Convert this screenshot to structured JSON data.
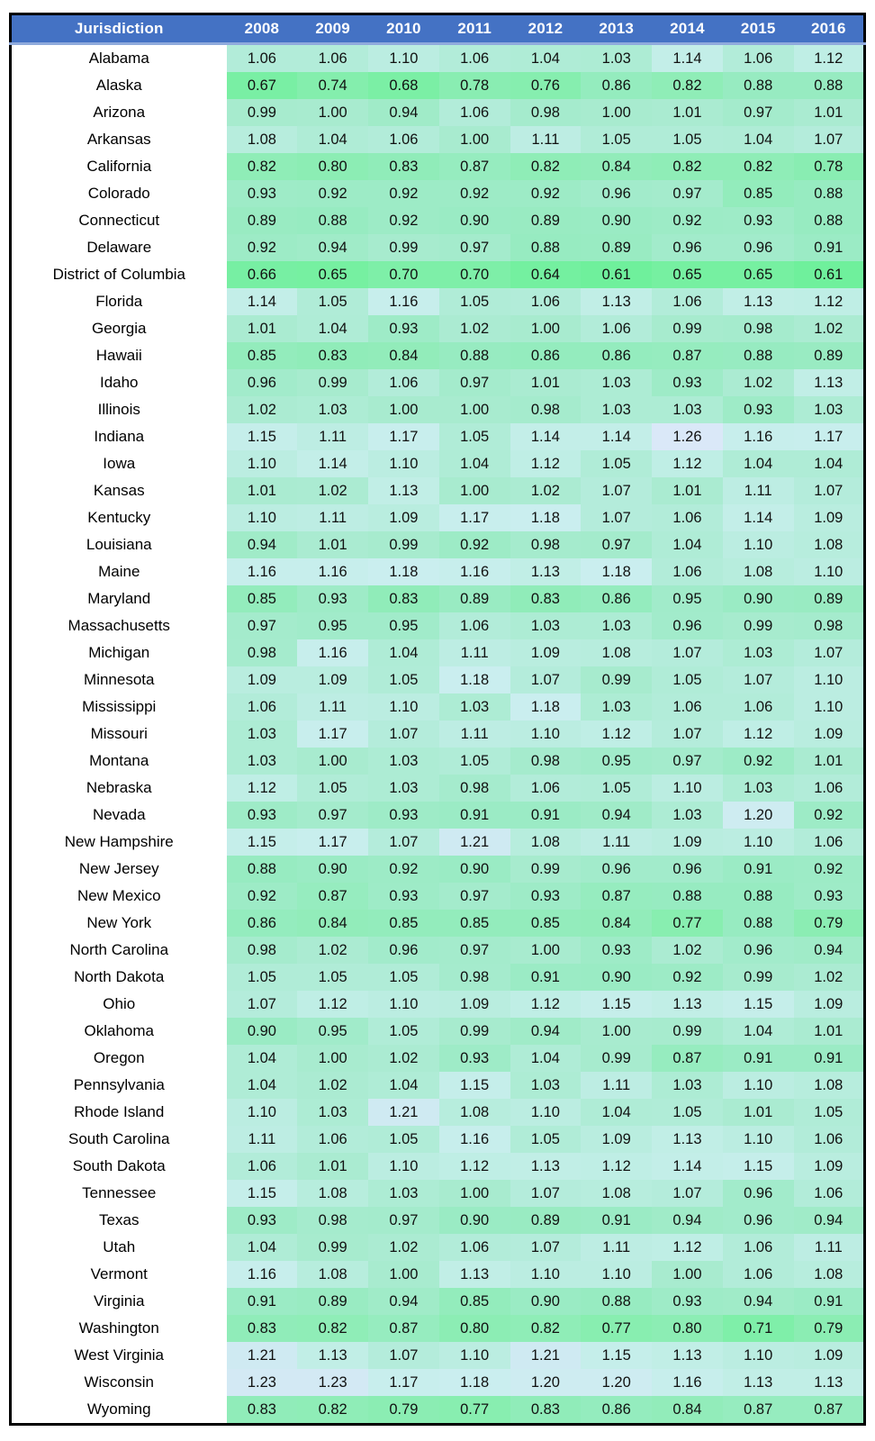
{
  "chart_data": {
    "type": "heatmap",
    "title": "",
    "corner_label": "Jurisdiction",
    "columns": [
      "2008",
      "2009",
      "2010",
      "2011",
      "2012",
      "2013",
      "2014",
      "2015",
      "2016"
    ],
    "rows": [
      {
        "name": "Alabama",
        "values": [
          1.06,
          1.06,
          1.1,
          1.06,
          1.04,
          1.03,
          1.14,
          1.06,
          1.12
        ]
      },
      {
        "name": "Alaska",
        "values": [
          0.67,
          0.74,
          0.68,
          0.78,
          0.76,
          0.86,
          0.82,
          0.88,
          0.88
        ]
      },
      {
        "name": "Arizona",
        "values": [
          0.99,
          1.0,
          0.94,
          1.06,
          0.98,
          1.0,
          1.01,
          0.97,
          1.01
        ]
      },
      {
        "name": "Arkansas",
        "values": [
          1.08,
          1.04,
          1.06,
          1.0,
          1.11,
          1.05,
          1.05,
          1.04,
          1.07
        ]
      },
      {
        "name": "California",
        "values": [
          0.82,
          0.8,
          0.83,
          0.87,
          0.82,
          0.84,
          0.82,
          0.82,
          0.78
        ]
      },
      {
        "name": "Colorado",
        "values": [
          0.93,
          0.92,
          0.92,
          0.92,
          0.92,
          0.96,
          0.97,
          0.85,
          0.88
        ]
      },
      {
        "name": "Connecticut",
        "values": [
          0.89,
          0.88,
          0.92,
          0.9,
          0.89,
          0.9,
          0.92,
          0.93,
          0.88
        ]
      },
      {
        "name": "Delaware",
        "values": [
          0.92,
          0.94,
          0.99,
          0.97,
          0.88,
          0.89,
          0.96,
          0.96,
          0.91
        ]
      },
      {
        "name": "District of Columbia",
        "values": [
          0.66,
          0.65,
          0.7,
          0.7,
          0.64,
          0.61,
          0.65,
          0.65,
          0.61
        ]
      },
      {
        "name": "Florida",
        "values": [
          1.14,
          1.05,
          1.16,
          1.05,
          1.06,
          1.13,
          1.06,
          1.13,
          1.12
        ]
      },
      {
        "name": "Georgia",
        "values": [
          1.01,
          1.04,
          0.93,
          1.02,
          1.0,
          1.06,
          0.99,
          0.98,
          1.02
        ]
      },
      {
        "name": "Hawaii",
        "values": [
          0.85,
          0.83,
          0.84,
          0.88,
          0.86,
          0.86,
          0.87,
          0.88,
          0.89
        ]
      },
      {
        "name": "Idaho",
        "values": [
          0.96,
          0.99,
          1.06,
          0.97,
          1.01,
          1.03,
          0.93,
          1.02,
          1.13
        ]
      },
      {
        "name": "Illinois",
        "values": [
          1.02,
          1.03,
          1.0,
          1.0,
          0.98,
          1.03,
          1.03,
          0.93,
          1.03
        ]
      },
      {
        "name": "Indiana",
        "values": [
          1.15,
          1.11,
          1.17,
          1.05,
          1.14,
          1.14,
          1.26,
          1.16,
          1.17
        ]
      },
      {
        "name": "Iowa",
        "values": [
          1.1,
          1.14,
          1.1,
          1.04,
          1.12,
          1.05,
          1.12,
          1.04,
          1.04
        ]
      },
      {
        "name": "Kansas",
        "values": [
          1.01,
          1.02,
          1.13,
          1.0,
          1.02,
          1.07,
          1.01,
          1.11,
          1.07
        ]
      },
      {
        "name": "Kentucky",
        "values": [
          1.1,
          1.11,
          1.09,
          1.17,
          1.18,
          1.07,
          1.06,
          1.14,
          1.09
        ]
      },
      {
        "name": "Louisiana",
        "values": [
          0.94,
          1.01,
          0.99,
          0.92,
          0.98,
          0.97,
          1.04,
          1.1,
          1.08
        ]
      },
      {
        "name": "Maine",
        "values": [
          1.16,
          1.16,
          1.18,
          1.16,
          1.13,
          1.18,
          1.06,
          1.08,
          1.1
        ]
      },
      {
        "name": "Maryland",
        "values": [
          0.85,
          0.93,
          0.83,
          0.89,
          0.83,
          0.86,
          0.95,
          0.9,
          0.89
        ]
      },
      {
        "name": "Massachusetts",
        "values": [
          0.97,
          0.95,
          0.95,
          1.06,
          1.03,
          1.03,
          0.96,
          0.99,
          0.98
        ]
      },
      {
        "name": "Michigan",
        "values": [
          0.98,
          1.16,
          1.04,
          1.11,
          1.09,
          1.08,
          1.07,
          1.03,
          1.07
        ]
      },
      {
        "name": "Minnesota",
        "values": [
          1.09,
          1.09,
          1.05,
          1.18,
          1.07,
          0.99,
          1.05,
          1.07,
          1.1
        ]
      },
      {
        "name": "Mississippi",
        "values": [
          1.06,
          1.11,
          1.1,
          1.03,
          1.18,
          1.03,
          1.06,
          1.06,
          1.1
        ]
      },
      {
        "name": "Missouri",
        "values": [
          1.03,
          1.17,
          1.07,
          1.11,
          1.1,
          1.12,
          1.07,
          1.12,
          1.09
        ]
      },
      {
        "name": "Montana",
        "values": [
          1.03,
          1.0,
          1.03,
          1.05,
          0.98,
          0.95,
          0.97,
          0.92,
          1.01
        ]
      },
      {
        "name": "Nebraska",
        "values": [
          1.12,
          1.05,
          1.03,
          0.98,
          1.06,
          1.05,
          1.1,
          1.03,
          1.06
        ]
      },
      {
        "name": "Nevada",
        "values": [
          0.93,
          0.97,
          0.93,
          0.91,
          0.91,
          0.94,
          1.03,
          1.2,
          0.92
        ]
      },
      {
        "name": "New Hampshire",
        "values": [
          1.15,
          1.17,
          1.07,
          1.21,
          1.08,
          1.11,
          1.09,
          1.1,
          1.06
        ]
      },
      {
        "name": "New Jersey",
        "values": [
          0.88,
          0.9,
          0.92,
          0.9,
          0.99,
          0.96,
          0.96,
          0.91,
          0.92
        ]
      },
      {
        "name": "New Mexico",
        "values": [
          0.92,
          0.87,
          0.93,
          0.97,
          0.93,
          0.87,
          0.88,
          0.88,
          0.93
        ]
      },
      {
        "name": "New York",
        "values": [
          0.86,
          0.84,
          0.85,
          0.85,
          0.85,
          0.84,
          0.77,
          0.88,
          0.79
        ]
      },
      {
        "name": "North Carolina",
        "values": [
          0.98,
          1.02,
          0.96,
          0.97,
          1.0,
          0.93,
          1.02,
          0.96,
          0.94
        ]
      },
      {
        "name": "North Dakota",
        "values": [
          1.05,
          1.05,
          1.05,
          0.98,
          0.91,
          0.9,
          0.92,
          0.99,
          1.02
        ]
      },
      {
        "name": "Ohio",
        "values": [
          1.07,
          1.12,
          1.1,
          1.09,
          1.12,
          1.15,
          1.13,
          1.15,
          1.09
        ]
      },
      {
        "name": "Oklahoma",
        "values": [
          0.9,
          0.95,
          1.05,
          0.99,
          0.94,
          1.0,
          0.99,
          1.04,
          1.01
        ]
      },
      {
        "name": "Oregon",
        "values": [
          1.04,
          1.0,
          1.02,
          0.93,
          1.04,
          0.99,
          0.87,
          0.91,
          0.91
        ]
      },
      {
        "name": "Pennsylvania",
        "values": [
          1.04,
          1.02,
          1.04,
          1.15,
          1.03,
          1.11,
          1.03,
          1.1,
          1.08
        ]
      },
      {
        "name": "Rhode Island",
        "values": [
          1.1,
          1.03,
          1.21,
          1.08,
          1.1,
          1.04,
          1.05,
          1.01,
          1.05
        ]
      },
      {
        "name": "South Carolina",
        "values": [
          1.11,
          1.06,
          1.05,
          1.16,
          1.05,
          1.09,
          1.13,
          1.1,
          1.06
        ]
      },
      {
        "name": "South Dakota",
        "values": [
          1.06,
          1.01,
          1.1,
          1.12,
          1.13,
          1.12,
          1.14,
          1.15,
          1.09
        ]
      },
      {
        "name": "Tennessee",
        "values": [
          1.15,
          1.08,
          1.03,
          1.0,
          1.07,
          1.08,
          1.07,
          0.96,
          1.06
        ]
      },
      {
        "name": "Texas",
        "values": [
          0.93,
          0.98,
          0.97,
          0.9,
          0.89,
          0.91,
          0.94,
          0.96,
          0.94
        ]
      },
      {
        "name": "Utah",
        "values": [
          1.04,
          0.99,
          1.02,
          1.06,
          1.07,
          1.11,
          1.12,
          1.06,
          1.11
        ]
      },
      {
        "name": "Vermont",
        "values": [
          1.16,
          1.08,
          1.0,
          1.13,
          1.1,
          1.1,
          1.0,
          1.06,
          1.08
        ]
      },
      {
        "name": "Virginia",
        "values": [
          0.91,
          0.89,
          0.94,
          0.85,
          0.9,
          0.88,
          0.93,
          0.94,
          0.91
        ]
      },
      {
        "name": "Washington",
        "values": [
          0.83,
          0.82,
          0.87,
          0.8,
          0.82,
          0.77,
          0.8,
          0.71,
          0.79
        ]
      },
      {
        "name": "West Virginia",
        "values": [
          1.21,
          1.13,
          1.07,
          1.1,
          1.21,
          1.15,
          1.13,
          1.1,
          1.09
        ]
      },
      {
        "name": "Wisconsin",
        "values": [
          1.23,
          1.23,
          1.17,
          1.18,
          1.2,
          1.2,
          1.16,
          1.13,
          1.13
        ]
      },
      {
        "name": "Wyoming",
        "values": [
          0.83,
          0.82,
          0.79,
          0.77,
          0.83,
          0.86,
          0.84,
          0.87,
          0.87
        ]
      }
    ],
    "value_decimals": 2,
    "value_range": [
      0.61,
      1.26
    ],
    "color_scale": {
      "description": "green (low) to pale teal (mid ~1.0) to light blue (high)",
      "stops": [
        [
          0.61,
          "#6FF09C"
        ],
        [
          0.7,
          "#7EEFA8"
        ],
        [
          0.8,
          "#8CEDB4"
        ],
        [
          0.9,
          "#9AEBC4"
        ],
        [
          1.0,
          "#A8EBCF"
        ],
        [
          1.06,
          "#B2ECD9"
        ],
        [
          1.1,
          "#BBEDE1"
        ],
        [
          1.14,
          "#C3EEE8"
        ],
        [
          1.18,
          "#CAEEEF"
        ],
        [
          1.22,
          "#D1E9F3"
        ],
        [
          1.26,
          "#DAE8F8"
        ]
      ]
    },
    "layout_hints": {
      "header_bg": "#4472C4",
      "header_text_color": "#FFFFFF",
      "outer_border_color": "#000000",
      "header_divider_color": "#8FAADC",
      "jurisdiction_column_bg": "#FFFFFF",
      "legend": "none",
      "grid": "off"
    }
  }
}
